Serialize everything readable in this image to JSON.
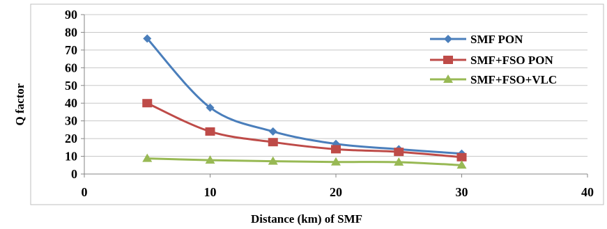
{
  "chart_data": {
    "type": "line",
    "title": "",
    "xlabel": "Distance (km) of SMF",
    "ylabel": "Q factor",
    "xlim": [
      0,
      40
    ],
    "ylim": [
      0,
      90
    ],
    "x_ticks": [
      0,
      10,
      20,
      30,
      40
    ],
    "y_ticks": [
      0,
      10,
      20,
      30,
      40,
      50,
      60,
      70,
      80,
      90
    ],
    "grid": "horizontal",
    "legend_position": "right",
    "x": [
      5,
      10,
      15,
      20,
      25,
      30
    ],
    "series": [
      {
        "name": "SMF PON",
        "values": [
          76.5,
          37.5,
          24,
          17,
          14,
          11.5
        ],
        "color": "#4a7ebb",
        "marker": "diamond"
      },
      {
        "name": "SMF+FSO PON",
        "values": [
          40,
          24,
          18,
          14,
          12.5,
          9.5
        ],
        "color": "#be4b48",
        "marker": "square"
      },
      {
        "name": "SMF+FSO+VLC",
        "values": [
          8.8,
          7.8,
          7.2,
          6.8,
          6.7,
          5
        ],
        "color": "#98b954",
        "marker": "triangle"
      }
    ]
  }
}
